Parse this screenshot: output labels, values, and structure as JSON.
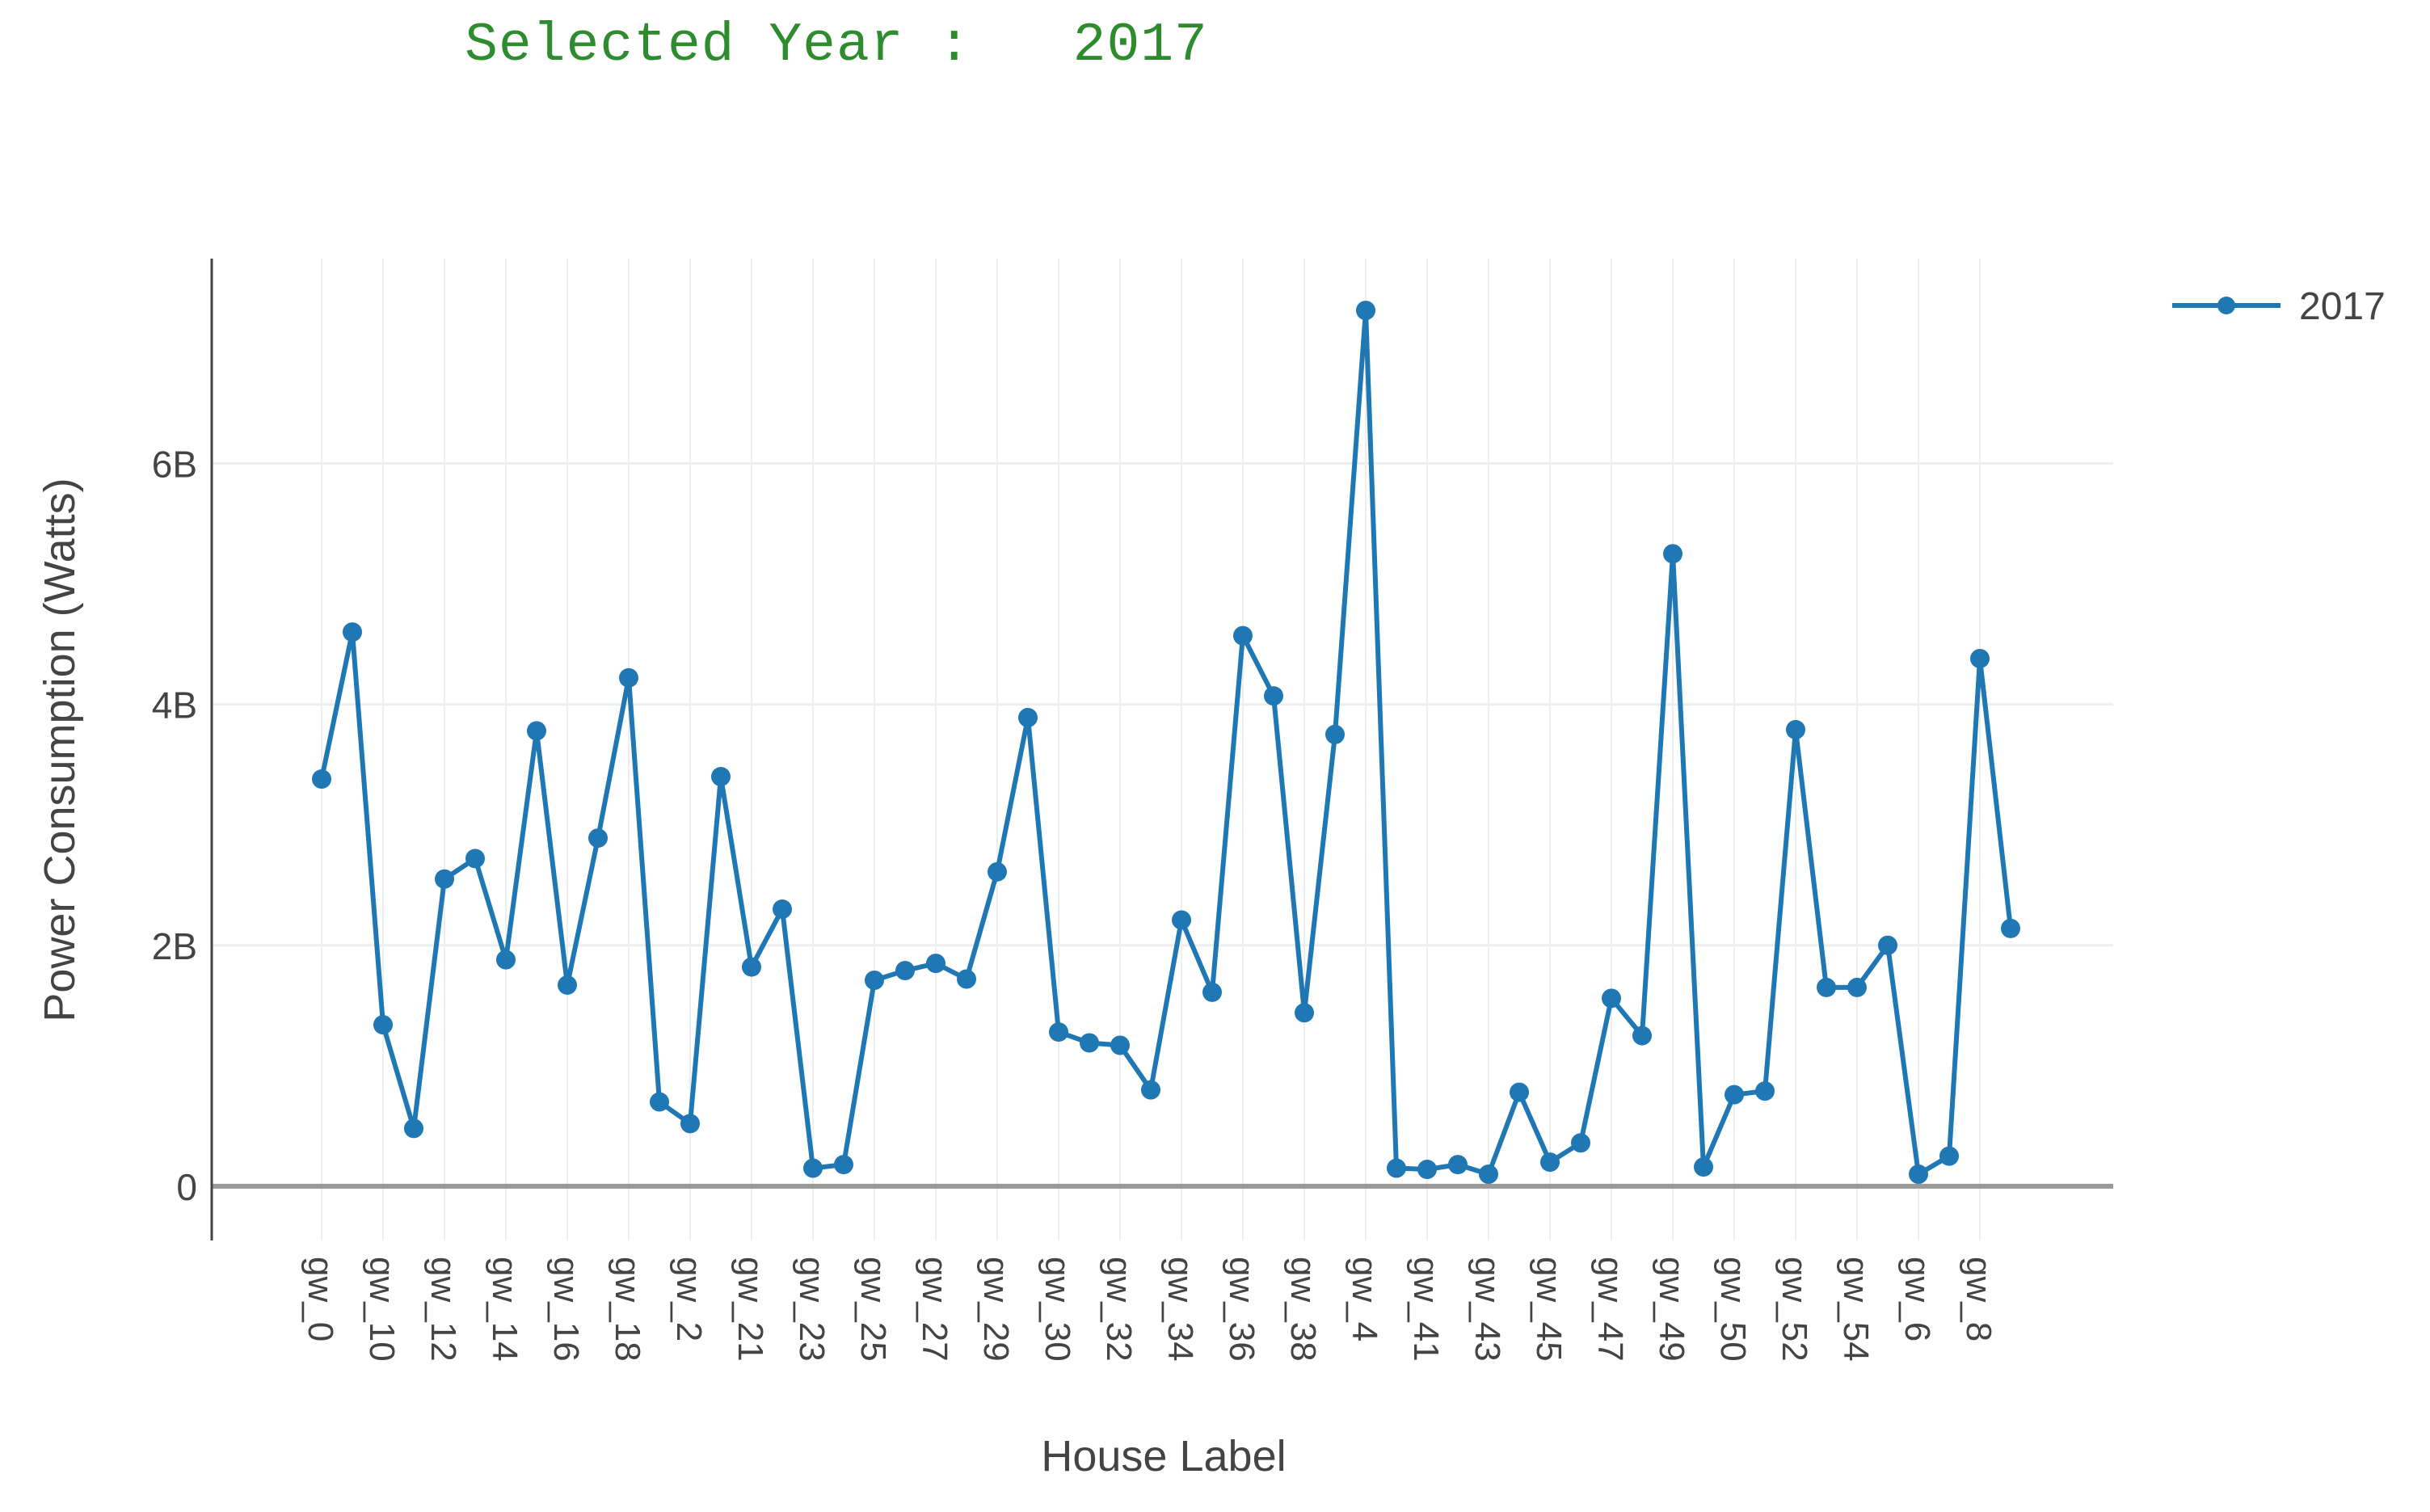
{
  "header": {
    "label": "Selected Year :",
    "year": "2017"
  },
  "colors": {
    "series": "#1f77b4",
    "grid": "#eeeeee",
    "zeroline": "#999999",
    "axis": "#444444",
    "header": "#2e8b2e"
  },
  "chart_data": {
    "type": "line",
    "title": "",
    "xlabel": "House Label",
    "ylabel": "Power Consumption (Watts)",
    "ylim": [
      -0.45,
      7.7
    ],
    "grid": true,
    "legend_position": "top-right",
    "x_tick_labels": [
      "gw_0",
      "gw_10",
      "gw_12",
      "gw_14",
      "gw_16",
      "gw_18",
      "gw_2",
      "gw_21",
      "gw_23",
      "gw_25",
      "gw_27",
      "gw_29",
      "gw_30",
      "gw_32",
      "gw_34",
      "gw_36",
      "gw_38",
      "gw_4",
      "gw_41",
      "gw_43",
      "gw_45",
      "gw_47",
      "gw_49",
      "gw_50",
      "gw_52",
      "gw_54",
      "gw_6",
      "gw_8"
    ],
    "y_ticks": [
      {
        "value": 0,
        "label": "0"
      },
      {
        "value": 2,
        "label": "2B"
      },
      {
        "value": 4,
        "label": "4B"
      },
      {
        "value": 6,
        "label": "6B"
      }
    ],
    "y_unit_note": "values in billions (B)",
    "series": [
      {
        "name": "2017",
        "values": [
          3.38,
          4.6,
          1.34,
          0.48,
          2.55,
          2.72,
          1.88,
          3.78,
          1.67,
          2.89,
          4.22,
          0.7,
          0.52,
          3.4,
          1.82,
          2.3,
          0.15,
          0.18,
          1.71,
          1.79,
          1.85,
          1.72,
          2.61,
          3.89,
          1.28,
          1.19,
          1.17,
          0.8,
          2.21,
          1.61,
          4.57,
          4.07,
          1.44,
          3.75,
          7.27,
          0.15,
          0.14,
          0.18,
          0.1,
          0.78,
          0.2,
          0.36,
          1.56,
          1.25,
          5.25,
          0.16,
          0.76,
          0.79,
          3.79,
          1.65,
          1.65,
          2.0,
          0.1,
          0.25,
          4.38,
          2.14
        ]
      }
    ]
  }
}
